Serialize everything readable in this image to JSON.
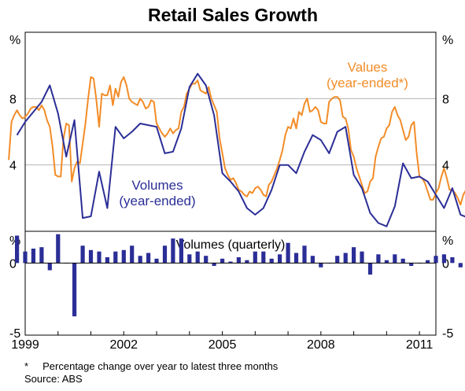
{
  "chart_data": {
    "type": "line",
    "title": "Retail Sales Growth",
    "x_start": 1999.0,
    "x_end": 2011.5,
    "x_ticks": [
      "1999",
      "2002",
      "2005",
      "2008",
      "2011"
    ],
    "x_tick_values": [
      1999,
      2002,
      2005,
      2008,
      2011
    ],
    "colors": {
      "values": "#f28c28",
      "volumes": "#2b2e96",
      "grid": "#b4b4b4"
    },
    "top_panel": {
      "unit_left": "%",
      "unit_right": "%",
      "ylim": [
        0,
        12
      ],
      "yticks": [
        "8",
        "4"
      ],
      "ytick_values": [
        8,
        4
      ],
      "series": [
        {
          "name": "Values",
          "name_line2": "(year-ended*)",
          "frequency": "monthly",
          "start": 1998.5,
          "values": [
            4.3,
            6.6,
            7.0,
            7.3,
            7.0,
            6.8,
            6.9,
            7.1,
            7.4,
            7.5,
            7.5,
            7.3,
            7.6,
            7.3,
            6.7,
            6.3,
            5.1,
            3.4,
            3.3,
            3.3,
            5.6,
            6.5,
            6.4,
            3.0,
            3.8,
            4.2,
            4.1,
            5.3,
            6.5,
            8.0,
            9.3,
            9.2,
            7.9,
            6.3,
            8.3,
            8.2,
            8.2,
            8.8,
            7.6,
            8.6,
            8.1,
            9.0,
            9.3,
            8.8,
            8.0,
            7.8,
            7.7,
            7.6,
            8.0,
            7.8,
            7.4,
            7.5,
            7.9,
            7.8,
            6.5,
            6.2,
            5.9,
            5.7,
            5.9,
            6.2,
            5.9,
            6.1,
            6.2,
            7.2,
            7.5,
            8.3,
            8.6,
            8.9,
            8.9,
            9.1,
            8.5,
            8.4,
            8.3,
            8.7,
            8.0,
            7.6,
            7.2,
            5.6,
            4.7,
            3.8,
            3.4,
            3.1,
            3.2,
            2.9,
            2.5,
            2.4,
            2.2,
            2.1,
            2.4,
            2.3,
            2.6,
            2.7,
            2.5,
            2.2,
            2.1,
            2.8,
            3.0,
            3.4,
            3.8,
            4.3,
            4.9,
            5.8,
            6.3,
            6.2,
            6.8,
            6.2,
            7.2,
            7.0,
            7.7,
            8.0,
            7.2,
            7.3,
            7.5,
            7.3,
            6.6,
            6.5,
            6.5,
            7.8,
            8.0,
            8.1,
            8.1,
            7.9,
            6.9,
            6.8,
            6.2,
            4.9,
            4.5,
            3.8,
            3.3,
            2.8,
            2.3,
            2.4,
            3.0,
            3.2,
            4.5,
            5.1,
            5.6,
            5.7,
            6.2,
            6.4,
            7.2,
            7.5,
            7.0,
            6.7,
            6.1,
            5.5,
            5.7,
            6.4,
            6.6,
            4.7,
            3.3,
            3.2,
            2.9,
            2.4,
            1.9,
            1.9,
            2.3,
            2.6,
            3.3,
            3.8,
            3.2,
            2.5,
            2.5,
            2.3,
            2.0,
            1.6,
            2.2,
            2.5,
            3.0,
            2.5
          ]
        },
        {
          "name": "Volumes",
          "name_line2": "(year-ended)",
          "frequency": "quarterly",
          "start": 1998.75,
          "values": [
            5.8,
            6.6,
            7.2,
            7.8,
            8.8,
            7.1,
            4.5,
            6.7,
            0.8,
            0.9,
            3.6,
            1.4,
            6.3,
            5.6,
            6.0,
            6.5,
            6.4,
            6.3,
            4.7,
            4.8,
            6.2,
            8.7,
            9.5,
            8.8,
            7.0,
            3.5,
            3.0,
            2.4,
            1.4,
            1.0,
            1.4,
            2.5,
            4.0,
            4.0,
            3.5,
            4.8,
            5.8,
            5.5,
            4.7,
            6.0,
            6.3,
            3.4,
            2.6,
            1.1,
            0.5,
            0.3,
            1.5,
            4.1,
            3.2,
            3.3,
            3.0,
            2.2,
            1.4,
            2.6,
            1.0,
            0.8
          ]
        }
      ]
    },
    "bottom_panel": {
      "title": "Volumes (quarterly)",
      "type": "bar",
      "frequency": "quarterly",
      "start": 1998.75,
      "unit_left": "%",
      "unit_right": "%",
      "ylim": [
        -5,
        2.2
      ],
      "yticks": [
        "0",
        "-5"
      ],
      "ytick_values": [
        0,
        -5
      ],
      "values": [
        1.9,
        0.8,
        1.0,
        1.1,
        -0.5,
        2.0,
        0.0,
        -3.7,
        1.2,
        0.9,
        0.8,
        0.4,
        0.8,
        0.9,
        1.2,
        0.5,
        0.7,
        0.3,
        1.2,
        1.7,
        1.7,
        0.6,
        0.8,
        0.5,
        -0.2,
        0.3,
        0.1,
        0.4,
        0.2,
        0.8,
        0.8,
        0.3,
        0.6,
        1.4,
        0.7,
        1.2,
        0.5,
        -0.3,
        0.0,
        0.5,
        0.7,
        1.1,
        0.8,
        -0.8,
        0.6,
        0.2,
        0.6,
        0.3,
        -0.2,
        0.0,
        0.2,
        0.5,
        0.6,
        0.4,
        -0.3,
        0.0
      ]
    }
  },
  "footnotes": {
    "note_star": "*",
    "note_text": "Percentage change over year to latest three months",
    "source": "Source: ABS"
  }
}
